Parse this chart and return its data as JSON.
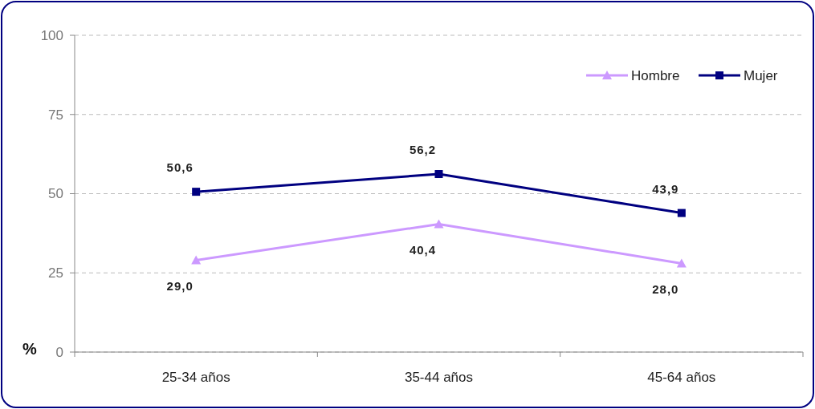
{
  "chart_data": {
    "type": "line",
    "ylabel": "%",
    "categories": [
      "25-34 años",
      "35-44 años",
      "45-64 años"
    ],
    "series": [
      {
        "name": "Hombre",
        "color": "#cc99ff",
        "marker": "triangle",
        "values": [
          29.0,
          40.4,
          28.0
        ],
        "value_labels": [
          "29,0",
          "40,4",
          "28,0"
        ]
      },
      {
        "name": "Mujer",
        "color": "#000080",
        "marker": "square",
        "values": [
          50.6,
          56.2,
          43.9
        ],
        "value_labels": [
          "50,6",
          "56,2",
          "43,9"
        ]
      }
    ],
    "ylim": [
      0,
      100
    ],
    "yticks": [
      0,
      25,
      50,
      75,
      100
    ],
    "grid": "y",
    "legend": "top right",
    "line_style": "solid"
  }
}
